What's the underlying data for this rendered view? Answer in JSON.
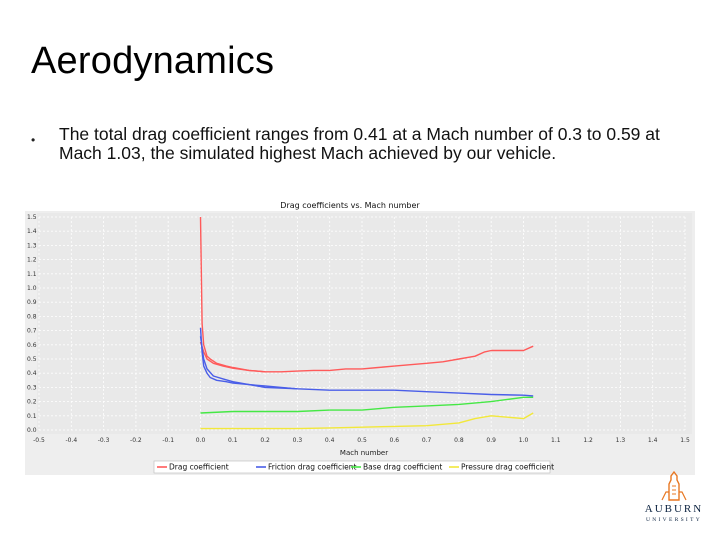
{
  "slide": {
    "title": "Aerodynamics",
    "bullet_symbol": "•",
    "bullet": "The total drag coefficient ranges from 0.41 at a Mach number of 0.3 to 0.59 at Mach 1.03, the simulated highest Mach achieved by our vehicle."
  },
  "logo": {
    "wordmark": "AUBURN",
    "subtitle": "UNIVERSITY",
    "icon": "tower-emblem-icon"
  },
  "chart_data": {
    "type": "line",
    "title": "Drag coefficients vs. Mach number",
    "xlabel": "Mach number",
    "ylabel": "",
    "xlim": [
      -0.5,
      1.5
    ],
    "ylim": [
      0.0,
      1.5
    ],
    "x_ticks": [
      "-0.5",
      "-0.4",
      "-0.3",
      "-0.2",
      "-0.1",
      "0.0",
      "0.1",
      "0.2",
      "0.3",
      "0.4",
      "0.5",
      "0.6",
      "0.7",
      "0.8",
      "0.9",
      "1.0",
      "1.1",
      "1.2",
      "1.3",
      "1.4",
      "1.5"
    ],
    "y_ticks": [
      "0.0",
      "0.1",
      "0.2",
      "0.3",
      "0.4",
      "0.5",
      "0.6",
      "0.7",
      "0.8",
      "0.9",
      "1.0",
      "1.1",
      "1.2",
      "1.3",
      "1.4",
      "1.5"
    ],
    "grid": true,
    "legend_position": "bottom",
    "series": [
      {
        "name": "Drag coefficient",
        "color": "#ff5a5a",
        "x": [
          0.0,
          0.005,
          0.01,
          0.02,
          0.03,
          0.05,
          0.08,
          0.1,
          0.15,
          0.2,
          0.25,
          0.3,
          0.35,
          0.4,
          0.45,
          0.5,
          0.55,
          0.6,
          0.65,
          0.7,
          0.75,
          0.8,
          0.85,
          0.88,
          0.9,
          0.92,
          0.95,
          1.0,
          1.03
        ],
        "y": [
          1.5,
          0.75,
          0.6,
          0.52,
          0.5,
          0.47,
          0.45,
          0.44,
          0.42,
          0.41,
          0.41,
          0.415,
          0.42,
          0.42,
          0.43,
          0.43,
          0.44,
          0.45,
          0.46,
          0.47,
          0.48,
          0.5,
          0.52,
          0.55,
          0.56,
          0.56,
          0.56,
          0.56,
          0.59
        ]
      },
      {
        "name": "Drag coefficient",
        "color": "#ff5a5a",
        "x": [
          0.0,
          0.01,
          0.02,
          0.04,
          0.07,
          0.1,
          0.15,
          0.2
        ],
        "y": [
          0.62,
          0.55,
          0.5,
          0.47,
          0.45,
          0.435,
          0.42,
          0.41
        ]
      },
      {
        "name": "Friction drag coefficient",
        "color": "#4a5ee8",
        "x": [
          0.0,
          0.005,
          0.01,
          0.02,
          0.03,
          0.05,
          0.08,
          0.1,
          0.15,
          0.2,
          0.25,
          0.3,
          0.4,
          0.5,
          0.6,
          0.7,
          0.8,
          0.9,
          1.0,
          1.03
        ],
        "y": [
          0.72,
          0.55,
          0.45,
          0.4,
          0.37,
          0.35,
          0.34,
          0.33,
          0.32,
          0.31,
          0.3,
          0.29,
          0.28,
          0.28,
          0.28,
          0.27,
          0.26,
          0.25,
          0.245,
          0.24
        ]
      },
      {
        "name": "Friction drag coefficient",
        "color": "#4a5ee8",
        "x": [
          0.0,
          0.01,
          0.02,
          0.04,
          0.07,
          0.1,
          0.15,
          0.2,
          0.3
        ],
        "y": [
          0.66,
          0.5,
          0.43,
          0.38,
          0.36,
          0.34,
          0.32,
          0.3,
          0.29
        ]
      },
      {
        "name": "Base drag coefficient",
        "color": "#45e845",
        "x": [
          0.0,
          0.1,
          0.2,
          0.3,
          0.4,
          0.5,
          0.55,
          0.6,
          0.7,
          0.8,
          0.9,
          1.0,
          1.03
        ],
        "y": [
          0.12,
          0.13,
          0.13,
          0.13,
          0.14,
          0.14,
          0.15,
          0.16,
          0.17,
          0.18,
          0.2,
          0.23,
          0.23
        ]
      },
      {
        "name": "Pressure drag coefficient",
        "color": "#f2e83a",
        "x": [
          0.0,
          0.1,
          0.2,
          0.3,
          0.4,
          0.5,
          0.6,
          0.7,
          0.8,
          0.85,
          0.9,
          0.95,
          1.0,
          1.03
        ],
        "y": [
          0.01,
          0.01,
          0.01,
          0.01,
          0.015,
          0.02,
          0.025,
          0.03,
          0.05,
          0.08,
          0.1,
          0.09,
          0.08,
          0.12
        ]
      }
    ],
    "legend": [
      {
        "label": "Drag coefficient",
        "color": "#ff5a5a"
      },
      {
        "label": "Friction drag coefficient",
        "color": "#4a5ee8"
      },
      {
        "label": "Base drag coefficient",
        "color": "#45e845"
      },
      {
        "label": "Pressure drag coefficient",
        "color": "#f2e83a"
      }
    ]
  }
}
